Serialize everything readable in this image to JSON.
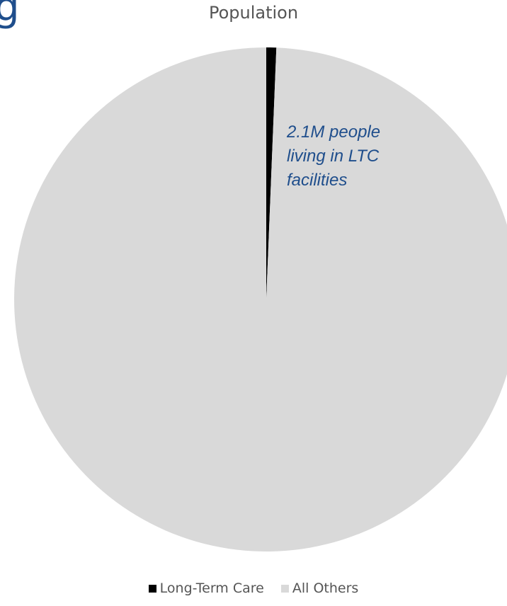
{
  "partial_text": "g",
  "chart_data": {
    "type": "pie",
    "title": "Population",
    "categories": [
      "Long-Term Care",
      "All Others"
    ],
    "values": [
      0.64,
      99.36
    ],
    "colors": [
      "#000000",
      "#d9d9d9"
    ],
    "legend": "bottom",
    "annotation": "2.1M people living in LTC facilities",
    "annotation_lines": [
      "2.1M people",
      "living in LTC",
      "facilities"
    ],
    "annotation_color": "#1f4e8c"
  }
}
